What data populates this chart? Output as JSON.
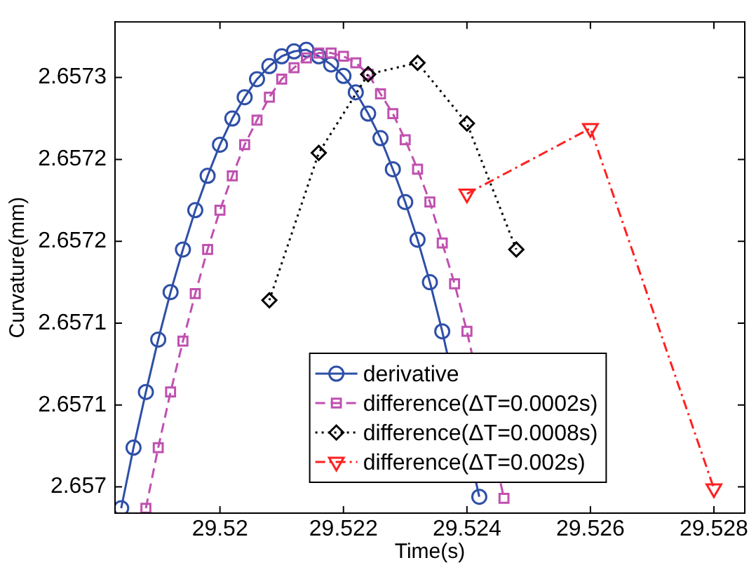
{
  "chart_data": {
    "type": "line",
    "xlabel": "Time(s)",
    "ylabel": "Curvature(mm)",
    "xlim": [
      29.5183,
      29.5285
    ],
    "xticks": [
      29.52,
      29.522,
      29.524,
      29.526,
      29.528
    ],
    "ylim": [
      2.657034,
      2.657334
    ],
    "yticks": [
      {
        "value": 2.65705,
        "label": "2.657"
      },
      {
        "value": 2.6571,
        "label": "2.6571"
      },
      {
        "value": 2.65715,
        "label": "2.6571"
      },
      {
        "value": 2.6572,
        "label": "2.6572"
      },
      {
        "value": 2.65725,
        "label": "2.6572"
      },
      {
        "value": 2.6573,
        "label": "2.6573"
      }
    ],
    "grid": false,
    "legend": "bottom",
    "series": [
      {
        "name": "derivative",
        "color": "#2e4fa8",
        "marker": "circle",
        "line_style": "solid",
        "x": [
          29.5184,
          29.5186,
          29.5188,
          29.519,
          29.5192,
          29.5194,
          29.5196,
          29.5198,
          29.52,
          29.5202,
          29.5204,
          29.5206,
          29.5208,
          29.521,
          29.5212,
          29.5214,
          29.5216,
          29.5218,
          29.522,
          29.5222,
          29.5224,
          29.5226,
          29.5228,
          29.523,
          29.5232,
          29.5234,
          29.5236,
          29.5238,
          29.524,
          29.5242
        ],
        "values": [
          2.657037,
          2.657074,
          2.657108,
          2.65714,
          2.657169,
          2.657195,
          2.657219,
          2.65724,
          2.657259,
          2.657275,
          2.657288,
          2.657299,
          2.657307,
          2.657313,
          2.657316,
          2.657317,
          2.657313,
          2.657308,
          2.657301,
          2.657291,
          2.657278,
          2.657263,
          2.657244,
          2.657224,
          2.657201,
          2.657175,
          2.657145,
          null,
          null,
          2.657044
        ]
      },
      {
        "name": "difference(ΔT=0.0002s)",
        "color": "#c050b0",
        "marker": "square",
        "line_style": "dashed",
        "x": [
          29.5188,
          29.519,
          29.5192,
          29.5194,
          29.5196,
          29.5198,
          29.52,
          29.5202,
          29.5204,
          29.5206,
          29.5208,
          29.521,
          29.5212,
          29.5214,
          29.5216,
          29.5218,
          29.522,
          29.5222,
          29.5224,
          29.5226,
          29.5228,
          29.523,
          29.5232,
          29.5234,
          29.5236,
          29.5238,
          29.524,
          29.5242,
          29.5244,
          29.5246
        ],
        "values": [
          2.657037,
          2.657074,
          2.657108,
          2.657139,
          2.657168,
          2.657195,
          2.657219,
          2.65724,
          2.657259,
          2.657274,
          2.657288,
          2.657299,
          2.657306,
          2.657312,
          2.657315,
          2.657315,
          2.657313,
          2.657309,
          2.657302,
          2.65729,
          2.657278,
          2.657262,
          2.657244,
          2.657224,
          2.657199,
          2.657174,
          2.657145,
          null,
          null,
          2.657043
        ]
      },
      {
        "name": "difference(ΔT=0.0008s)",
        "color": "#000000",
        "marker": "diamond",
        "line_style": "dotted",
        "x": [
          29.5208,
          29.5216,
          29.5224,
          29.5232,
          29.524,
          29.5248
        ],
        "values": [
          2.657164,
          2.657254,
          2.657302,
          2.657309,
          2.657272,
          2.657195
        ]
      },
      {
        "name": "difference(ΔT=0.002s)",
        "color": "#ff2020",
        "marker": "triangle",
        "line_style": "dashdot",
        "x": [
          29.524,
          29.526,
          29.528
        ],
        "values": [
          2.657229,
          2.657269,
          2.657049
        ]
      }
    ]
  }
}
